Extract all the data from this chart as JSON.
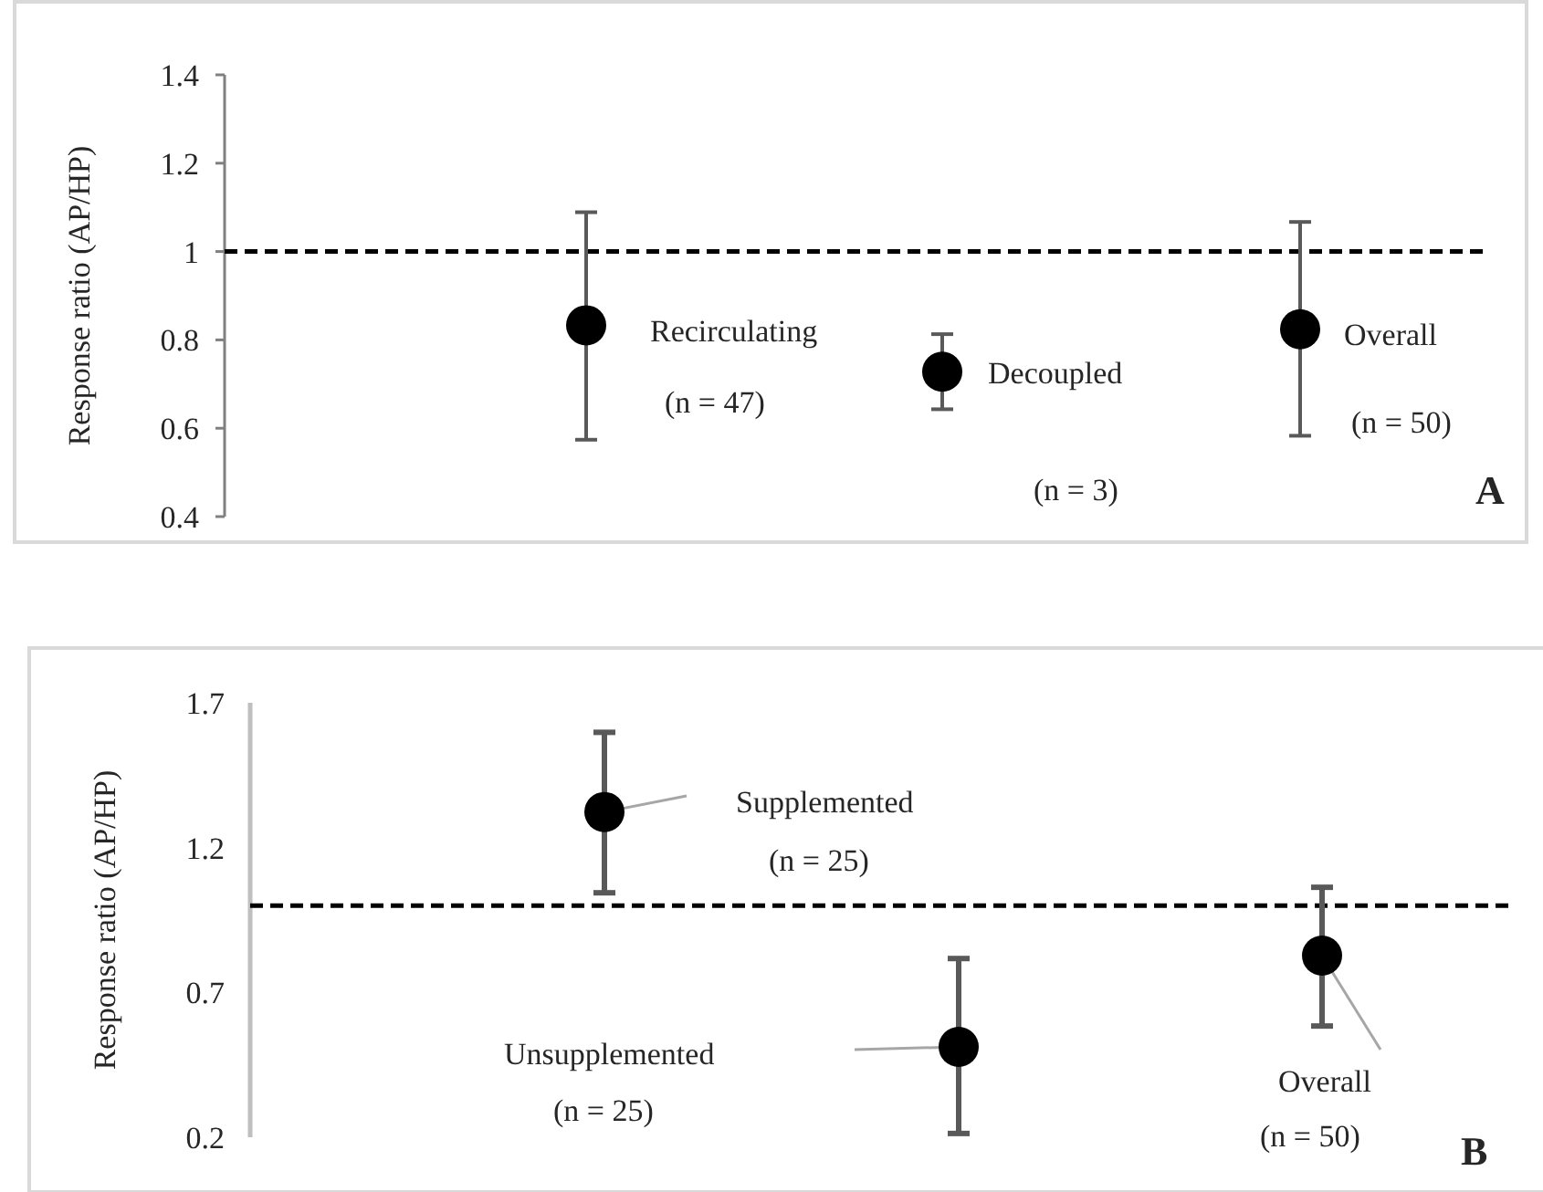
{
  "chart_data": [
    {
      "type": "scatter",
      "ylabel": "Response ratio (AP/HP)",
      "categories": [
        null,
        null,
        null
      ],
      "values": [
        0.833,
        0.728,
        0.824
      ],
      "errors": [
        [
          0.574,
          1.089
        ],
        [
          0.643,
          0.813
        ],
        [
          0.583,
          1.067
        ]
      ],
      "color": "#000000",
      "marker": "circle",
      "ylim": [
        0.4,
        1.4
      ],
      "yticks": [
        {
          "value": 0.4,
          "label": "0.4"
        },
        {
          "value": 0.6,
          "label": "0.6"
        },
        {
          "value": 0.8,
          "label": "0.8"
        },
        {
          "value": 1,
          "label": "1"
        },
        {
          "value": 1.2,
          "label": "1.2"
        },
        {
          "value": 1.4,
          "label": "1.4"
        }
      ],
      "ref_lines": [
        {
          "axis": "y",
          "value": 1,
          "color": "#000000",
          "line_style": "dashed"
        }
      ],
      "grid": false,
      "annotations": [
        "Recirculating",
        "(n = 47)",
        "Decoupled",
        "(n = 3)",
        "Overall",
        "(n = 50)",
        "A"
      ]
    },
    {
      "type": "scatter",
      "ylabel": "Response ratio (AP/HP)",
      "categories": [
        null,
        null,
        null
      ],
      "values": [
        1.323,
        0.512,
        0.827
      ],
      "errors": [
        [
          1.044,
          1.598
        ],
        [
          0.213,
          0.817
        ],
        [
          0.584,
          1.063
        ]
      ],
      "color": "#000000",
      "marker": "circle",
      "ylim": [
        0.2,
        1.7
      ],
      "yticks": [
        {
          "value": 0.2,
          "label": "0.2"
        },
        {
          "value": 0.7,
          "label": "0.7"
        },
        {
          "value": 1.2,
          "label": "1.2"
        },
        {
          "value": 1.7,
          "label": "1.7"
        }
      ],
      "ref_lines": [
        {
          "axis": "y",
          "value": 1,
          "color": "#000000",
          "line_style": "dashed"
        }
      ],
      "grid": false,
      "annotations": [
        "Supplemented",
        "(n = 25)",
        "Unsupplemented",
        "(n = 25)",
        "Overall",
        "(n = 50)",
        "B"
      ]
    }
  ]
}
